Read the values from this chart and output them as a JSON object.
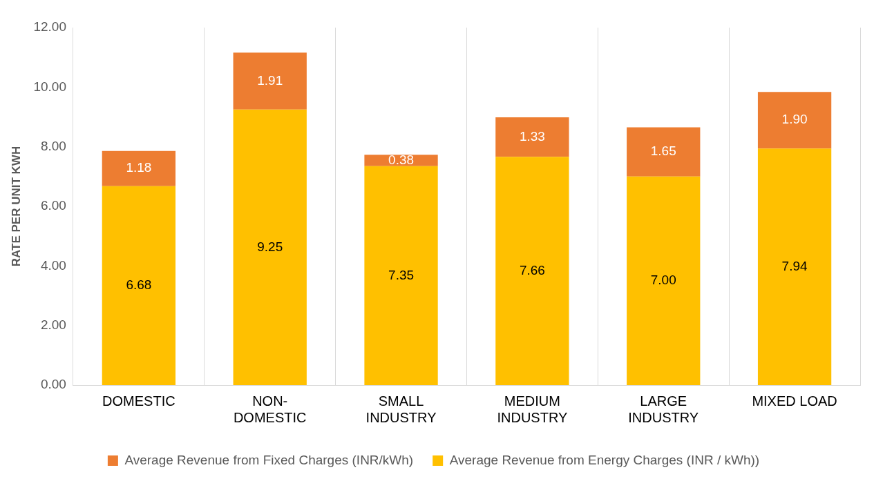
{
  "chart_data": {
    "type": "bar",
    "stacked": true,
    "ylabel": "RATE PER UNIT KWH",
    "categories": [
      "DOMESTIC",
      "NON-DOMESTIC",
      "SMALL INDUSTRY",
      "MEDIUM INDUSTRY",
      "LARGE INDUSTRY",
      "MIXED LOAD"
    ],
    "series": [
      {
        "name": "Average Revenue from Energy Charges (INR / kWh))",
        "color": "#ffc000",
        "values": [
          6.68,
          9.25,
          7.35,
          7.66,
          7.0,
          7.94
        ],
        "value_labels": [
          "6.68",
          "9.25",
          "7.35",
          "7.66",
          "7.00",
          "7.94"
        ]
      },
      {
        "name": "Average Revenue from Fixed Charges (INR/kWh)",
        "color": "#ed7d31",
        "values": [
          1.18,
          1.91,
          0.38,
          1.33,
          1.65,
          1.9
        ],
        "value_labels": [
          "1.18",
          "1.91",
          "0.38",
          "1.33",
          "1.65",
          "1.90"
        ]
      }
    ],
    "ylim": [
      0,
      12
    ],
    "yticks": [
      {
        "value": 0,
        "label": "0.00"
      },
      {
        "value": 2,
        "label": "2.00"
      },
      {
        "value": 4,
        "label": "4.00"
      },
      {
        "value": 6,
        "label": "6.00"
      },
      {
        "value": 8,
        "label": "8.00"
      },
      {
        "value": 10,
        "label": "10.00"
      },
      {
        "value": 12,
        "label": "12.00"
      }
    ],
    "grid": "x",
    "legend": "bottom"
  }
}
